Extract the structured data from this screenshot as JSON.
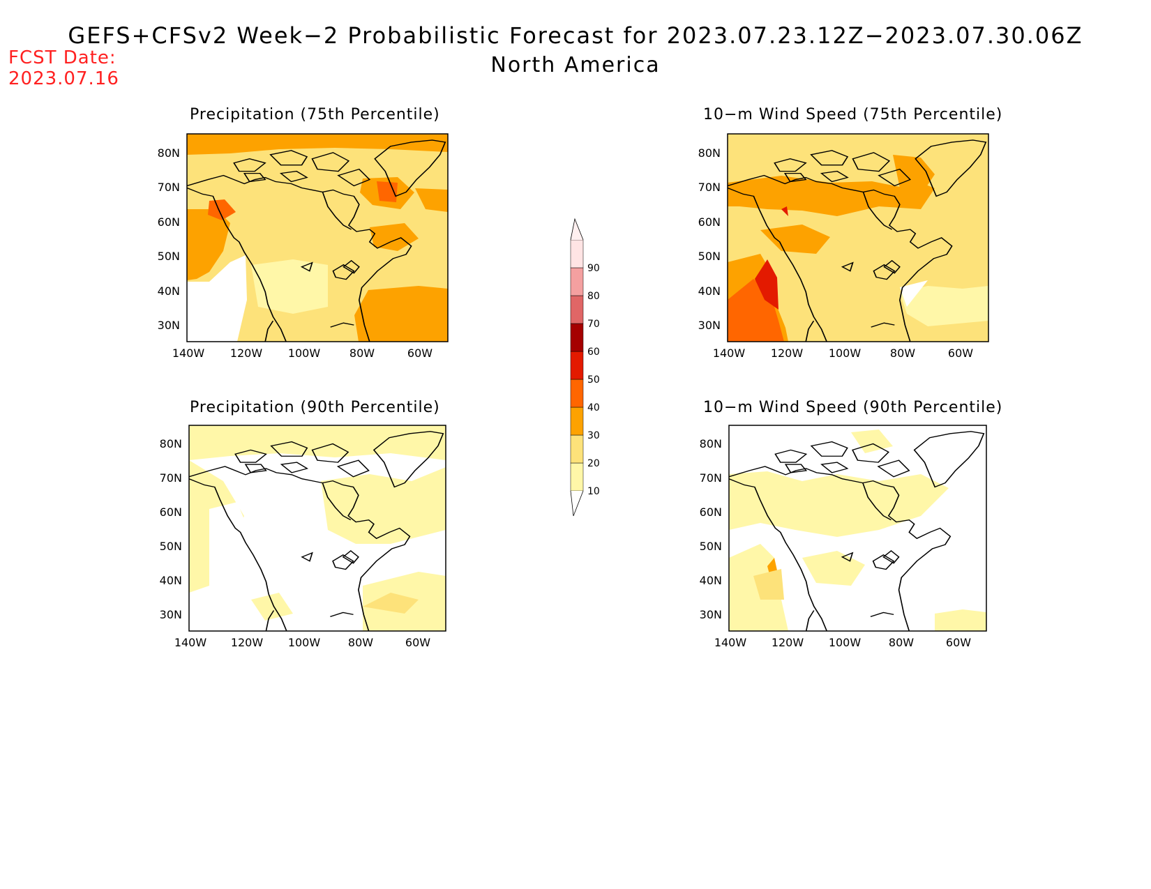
{
  "header": {
    "title": "GEFS+CFSv2 Week−2 Probabilistic Forecast for 2023.07.23.12Z−2023.07.30.06Z",
    "subtitle": "North America",
    "fcst_label": "FCST Date:",
    "fcst_value": "2023.07.16"
  },
  "panels": [
    {
      "title": "Precipitation (75th Percentile)",
      "variable": "precipitation",
      "percentile": 75
    },
    {
      "title": "10−m Wind Speed (75th Percentile)",
      "variable": "wind_speed",
      "percentile": 75
    },
    {
      "title": "Precipitation (90th Percentile)",
      "variable": "precipitation",
      "percentile": 90
    },
    {
      "title": "10−m Wind Speed (90th Percentile)",
      "variable": "wind_speed",
      "percentile": 90
    }
  ],
  "axes": {
    "lat_labels": [
      "80N",
      "70N",
      "60N",
      "50N",
      "40N",
      "30N"
    ],
    "lon_labels": [
      "140W",
      "120W",
      "100W",
      "80W",
      "60W"
    ]
  },
  "colorbar": {
    "levels": [
      "10",
      "20",
      "30",
      "40",
      "50",
      "60",
      "70",
      "80",
      "90"
    ],
    "colors": [
      "#fff7a8",
      "#fde27a",
      "#fda200",
      "#ff6600",
      "#e31a00",
      "#a50000",
      "#e06666",
      "#f4a0a0",
      "#ffe4e4"
    ]
  }
}
